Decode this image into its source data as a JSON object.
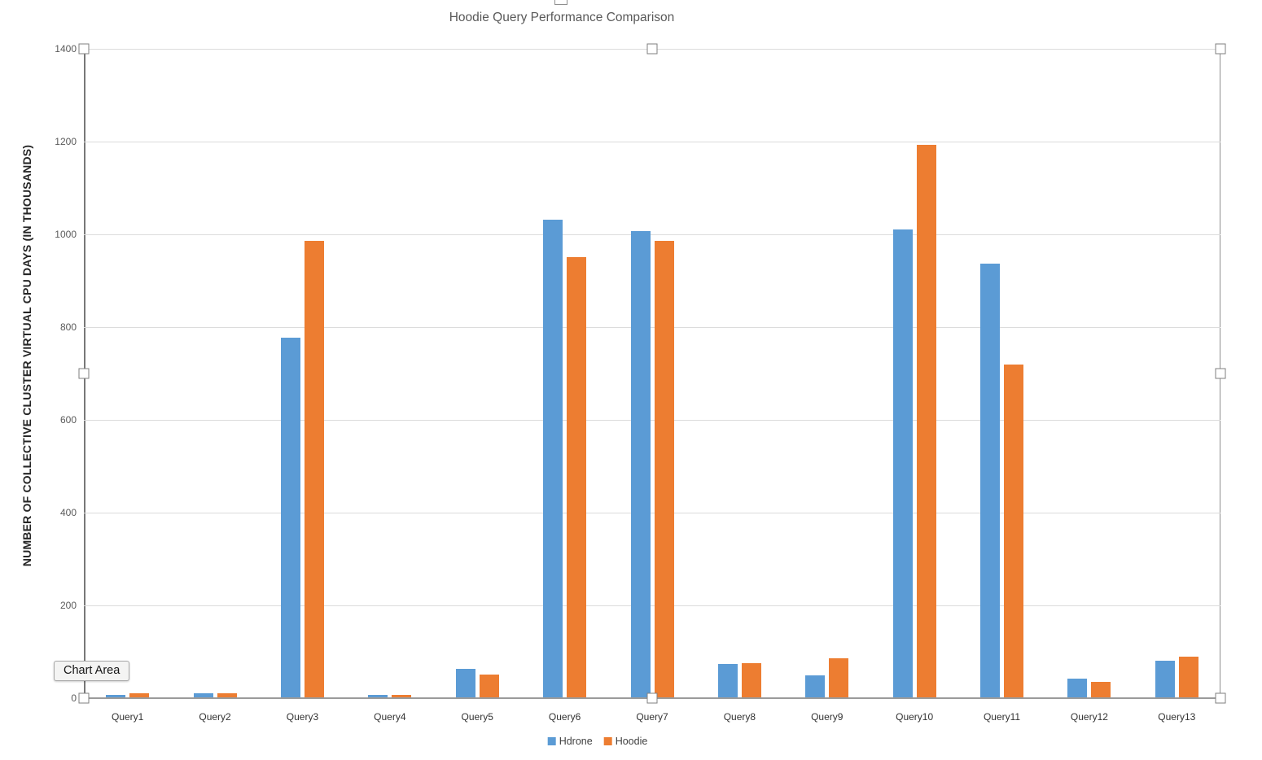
{
  "window": {
    "tooltip_label": "Chart Area"
  },
  "chart_data": {
    "type": "bar",
    "title": "Hoodie Query Performance Comparison",
    "xlabel": "",
    "ylabel": "NUMBER OF COLLECTIVE CLUSTER VIRTUAL CPU DAYS (IN THOUSANDS)",
    "categories": [
      "Query1",
      "Query2",
      "Query3",
      "Query4",
      "Query5",
      "Query6",
      "Query7",
      "Query8",
      "Query9",
      "Query10",
      "Query11",
      "Query12",
      "Query13"
    ],
    "series": [
      {
        "name": "Hdrone",
        "color": "#5B9BD5",
        "values": [
          5,
          9,
          775,
          5,
          62,
          1030,
          1005,
          72,
          47,
          1008,
          935,
          40,
          79
        ]
      },
      {
        "name": "Hoodie",
        "color": "#ED7D31",
        "values": [
          9,
          9,
          985,
          5,
          50,
          950,
          985,
          73,
          85,
          1192,
          717,
          33,
          87
        ]
      }
    ],
    "ylim": [
      0,
      1400
    ],
    "yticks": [
      0,
      200,
      400,
      600,
      800,
      1000,
      1200,
      1400
    ],
    "grid": true,
    "legend_position": "bottom",
    "selection": "chart-selected-with-handles"
  }
}
